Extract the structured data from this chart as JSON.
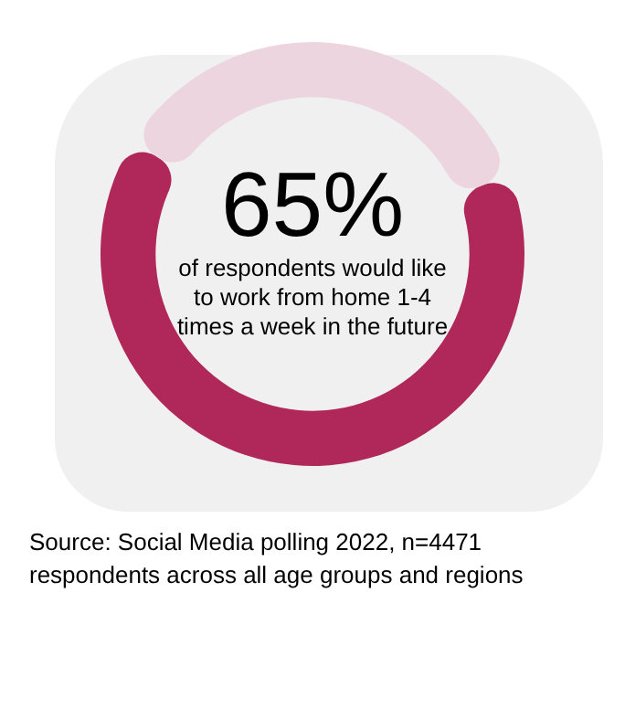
{
  "chart_data": {
    "type": "donut",
    "title": "65%",
    "subtitle": "of respondents would like to work from home 1-4 times a week in the future",
    "categories": [
      null,
      null
    ],
    "values": [
      65,
      35
    ],
    "colors": [
      "#b0285a",
      "#ecd5de"
    ],
    "legend": false,
    "annotations": [
      "Source: Social Media polling 2022, n=4471 respondents across all age groups and regions"
    ]
  }
}
